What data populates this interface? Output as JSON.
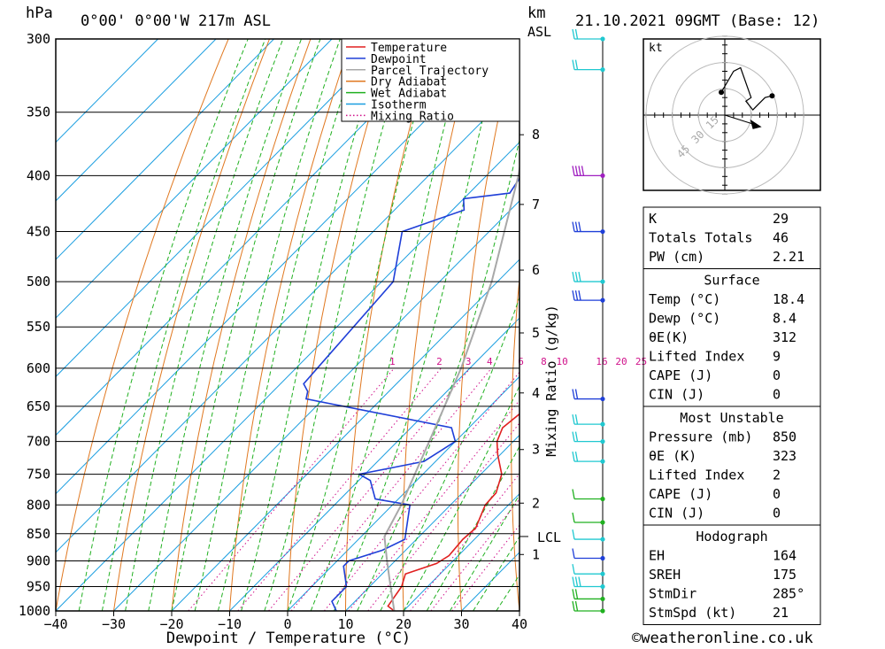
{
  "header": {
    "unit_hpa": "hPa",
    "location": "0°00' 0°00'W 217m ASL",
    "unit_km": "km",
    "unit_asl": "ASL",
    "datetime": "21.10.2021 09GMT (Base: 12)"
  },
  "chart_data": {
    "type": "line",
    "title": "0°00' 0°00'W 217m ASL",
    "xlabel": "Dewpoint / Temperature (°C)",
    "ylabel": "hPa",
    "xlim": [
      -40,
      40
    ],
    "ylim": [
      1000,
      300
    ],
    "y_scale": "log",
    "skew": true,
    "grid": true,
    "legend_position": "top-right",
    "x_ticks": [
      "−40",
      "−30",
      "−20",
      "−10",
      "0",
      "10",
      "20",
      "30",
      "40"
    ],
    "x_tick_values": [
      -40,
      -30,
      -20,
      -10,
      0,
      10,
      20,
      30,
      40
    ],
    "pressure_ticks": [
      300,
      350,
      400,
      450,
      500,
      550,
      600,
      650,
      700,
      750,
      800,
      850,
      900,
      950,
      1000
    ],
    "km_ticks": [
      {
        "label": "1",
        "p": 888
      },
      {
        "label": "2",
        "p": 797
      },
      {
        "label": "3",
        "p": 712
      },
      {
        "label": "4",
        "p": 632
      },
      {
        "label": "5",
        "p": 557
      },
      {
        "label": "6",
        "p": 488
      },
      {
        "label": "7",
        "p": 425
      },
      {
        "label": "8",
        "p": 367
      }
    ],
    "lcl": {
      "label": "LCL",
      "p": 855
    },
    "secondary_ylabel": "Mixing Ratio (g/kg)",
    "mixing_ratio_labels": [
      "1",
      "2",
      "3",
      "4",
      "6",
      "8",
      "10",
      "16",
      "20",
      "25"
    ],
    "mixing_ratio_values": [
      1,
      2,
      3,
      4,
      6,
      8,
      10,
      16,
      20,
      25
    ],
    "legend": [
      "Temperature",
      "Dewpoint",
      "Parcel Trajectory",
      "Dry Adiabat",
      "Wet Adiabat",
      "Isotherm",
      "Mixing Ratio"
    ],
    "colors": {
      "temperature": "#e02020",
      "dewpoint": "#1f3fd8",
      "parcel": "#a8a8a8",
      "dry_adiabat": "#e07820",
      "wet_adiabat": "#20b020",
      "isotherm": "#1a9ee0",
      "mixing_ratio": "#d0108a"
    },
    "series": [
      {
        "name": "Temperature",
        "points": [
          [
            1000,
            18.4
          ],
          [
            990,
            16.5
          ],
          [
            950,
            15.5
          ],
          [
            925,
            14.0
          ],
          [
            905,
            17.6
          ],
          [
            890,
            18.4
          ],
          [
            860,
            18.0
          ],
          [
            840,
            18.3
          ],
          [
            800,
            16.0
          ],
          [
            780,
            15.8
          ],
          [
            750,
            13.6
          ],
          [
            720,
            9.6
          ],
          [
            700,
            7.2
          ],
          [
            680,
            5.8
          ],
          [
            660,
            6.4
          ],
          [
            640,
            6.4
          ],
          [
            620,
            5.0
          ],
          [
            600,
            3.3
          ],
          [
            550,
            -1.6
          ],
          [
            500,
            -7.2
          ],
          [
            450,
            -13.5
          ],
          [
            420,
            -18.0
          ],
          [
            400,
            -21.5
          ],
          [
            370,
            -27.5
          ],
          [
            350,
            -31.0
          ],
          [
            320,
            -37.0
          ],
          [
            300,
            -41.5
          ]
        ]
      },
      {
        "name": "Dewpoint",
        "points": [
          [
            1000,
            8.4
          ],
          [
            980,
            6.0
          ],
          [
            950,
            6.0
          ],
          [
            910,
            2.0
          ],
          [
            900,
            2.0
          ],
          [
            880,
            6.0
          ],
          [
            860,
            8.0
          ],
          [
            800,
            3.0
          ],
          [
            790,
            -4.0
          ],
          [
            760,
            -8.0
          ],
          [
            750,
            -11.0
          ],
          [
            730,
            -2.0
          ],
          [
            700,
            0.0
          ],
          [
            680,
            -3.0
          ],
          [
            640,
            -33.0
          ],
          [
            630,
            -34.0
          ],
          [
            620,
            -36.0
          ],
          [
            500,
            -38.0
          ],
          [
            450,
            -45.0
          ],
          [
            430,
            -38.0
          ],
          [
            425,
            -39.0
          ],
          [
            420,
            -40.0
          ],
          [
            415,
            -33.0
          ],
          [
            400,
            -34.0
          ],
          [
            380,
            -35.0
          ],
          [
            360,
            -42.0
          ],
          [
            300,
            -49.0
          ]
        ]
      },
      {
        "name": "Parcel Trajectory",
        "points": [
          [
            1000,
            18.4
          ],
          [
            950,
            13.6
          ],
          [
            900,
            8.6
          ],
          [
            855,
            4.0
          ],
          [
            800,
            1.5
          ],
          [
            700,
            -4.5
          ],
          [
            600,
            -11.5
          ],
          [
            500,
            -21.0
          ],
          [
            400,
            -34.5
          ],
          [
            300,
            -54.0
          ]
        ]
      }
    ]
  },
  "hodograph": {
    "unit": "kt",
    "ring_labels": [
      "15",
      "30",
      "45"
    ],
    "ring_values": [
      15,
      30,
      45
    ],
    "trace_kt": [
      [
        -2,
        13
      ],
      [
        5,
        25
      ],
      [
        9,
        27
      ],
      [
        15,
        10
      ],
      [
        12,
        8
      ],
      [
        16,
        3
      ],
      [
        19,
        6
      ],
      [
        23,
        10
      ],
      [
        27,
        11
      ]
    ],
    "dots_kt": [
      [
        -2,
        13
      ],
      [
        27,
        11
      ]
    ],
    "storm_kt": [
      19,
      -6
    ]
  },
  "wind_profile": {
    "levels": [
      {
        "p": 300,
        "color": "#20c8d0",
        "barbs": "ff"
      },
      {
        "p": 320,
        "color": "#20c8d0",
        "barbs": "ff"
      },
      {
        "p": 400,
        "color": "#a020c0",
        "barbs": "ffff"
      },
      {
        "p": 450,
        "color": "#1f3fd8",
        "barbs": "fff"
      },
      {
        "p": 500,
        "color": "#20c8d0",
        "barbs": "fff"
      },
      {
        "p": 520,
        "color": "#1f3fd8",
        "barbs": "fff"
      },
      {
        "p": 640,
        "color": "#1f3fd8",
        "barbs": "ff"
      },
      {
        "p": 675,
        "color": "#20c8d0",
        "barbs": "ff"
      },
      {
        "p": 700,
        "color": "#20c8d0",
        "barbs": "ff"
      },
      {
        "p": 730,
        "color": "#20c8d0",
        "barbs": "ff"
      },
      {
        "p": 790,
        "color": "#20b020",
        "barbs": "f"
      },
      {
        "p": 830,
        "color": "#20b020",
        "barbs": "f"
      },
      {
        "p": 860,
        "color": "#20c8d0",
        "barbs": "f"
      },
      {
        "p": 895,
        "color": "#1f3fd8",
        "barbs": "f"
      },
      {
        "p": 925,
        "color": "#20c8d0",
        "barbs": "f"
      },
      {
        "p": 950,
        "color": "#20c8d0",
        "barbs": "fff"
      },
      {
        "p": 975,
        "color": "#20b020",
        "barbs": "ff"
      },
      {
        "p": 1000,
        "color": "#20b020",
        "barbs": "ff"
      }
    ]
  },
  "indices": {
    "top": [
      {
        "label": "K",
        "value": "29"
      },
      {
        "label": "Totals Totals",
        "value": "46"
      },
      {
        "label": "PW (cm)",
        "value": "2.21"
      }
    ],
    "surface": {
      "title": "Surface",
      "rows": [
        {
          "label": "Temp (°C)",
          "value": "18.4"
        },
        {
          "label": "Dewp (°C)",
          "value": "8.4"
        },
        {
          "label": "θE(K)",
          "value": "312"
        },
        {
          "label": "Lifted Index",
          "value": "9"
        },
        {
          "label": "CAPE (J)",
          "value": "0"
        },
        {
          "label": "CIN (J)",
          "value": "0"
        }
      ]
    },
    "most_unstable": {
      "title": "Most Unstable",
      "rows": [
        {
          "label": "Pressure (mb)",
          "value": "850"
        },
        {
          "label": "θE (K)",
          "value": "323"
        },
        {
          "label": "Lifted Index",
          "value": "2"
        },
        {
          "label": "CAPE (J)",
          "value": "0"
        },
        {
          "label": "CIN (J)",
          "value": "0"
        }
      ]
    },
    "hodograph": {
      "title": "Hodograph",
      "rows": [
        {
          "label": "EH",
          "value": "164"
        },
        {
          "label": "SREH",
          "value": "175"
        },
        {
          "label": "StmDir",
          "value": "285°"
        },
        {
          "label": "StmSpd (kt)",
          "value": "21"
        }
      ]
    }
  },
  "footer": {
    "copyright": "©weatheronline.co.uk"
  }
}
